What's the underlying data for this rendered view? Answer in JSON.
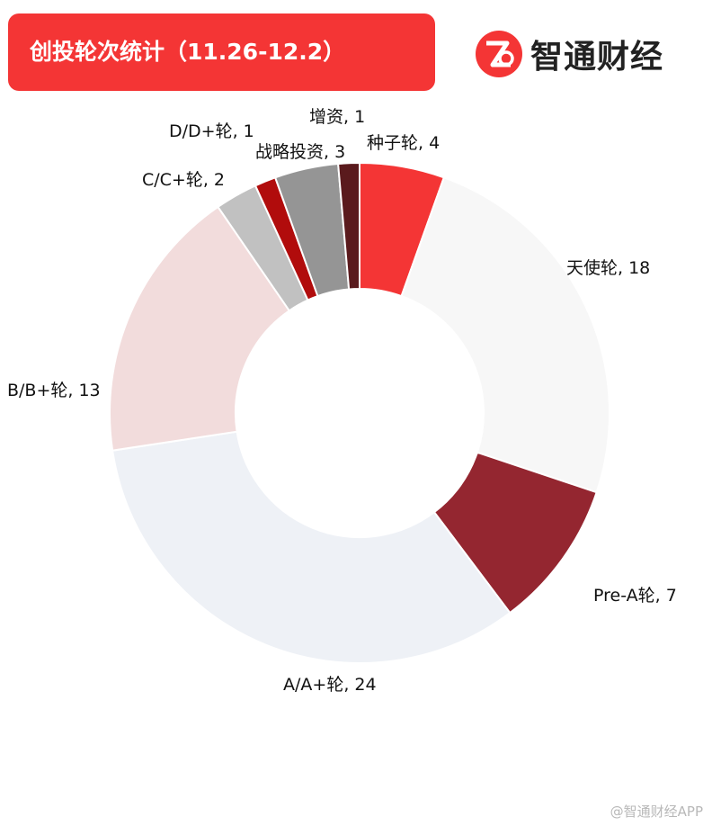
{
  "header": {
    "title": "创投轮次统计（11.26-12.2）"
  },
  "brand": {
    "name": "智通财经",
    "logo_icon": "zhitong-logo-icon"
  },
  "watermark": "@智通财经APP",
  "chart_data": {
    "type": "pie",
    "title": "创投轮次统计（11.26-12.2）",
    "donut": true,
    "categories": [
      "种子轮",
      "天使轮",
      "Pre-A轮",
      "A/A+轮",
      "B/B+轮",
      "C/C+轮",
      "D/D+轮",
      "战略投资",
      "增资"
    ],
    "values": [
      4,
      18,
      7,
      24,
      13,
      2,
      1,
      3,
      1
    ],
    "labels": [
      "种子轮, 4",
      "天使轮, 18",
      "Pre-A轮, 7",
      "A/A+轮, 24",
      "B/B+轮, 13",
      "C/C+轮, 2",
      "D/D+轮, 1",
      "战略投资, 3",
      "增资, 1"
    ],
    "colors": [
      "#f43535",
      "#f7f7f7",
      "#942630",
      "#eef1f6",
      "#f2dcdc",
      "#c1c1c1",
      "#b10c0c",
      "#959595",
      "#5a1a1d"
    ]
  }
}
